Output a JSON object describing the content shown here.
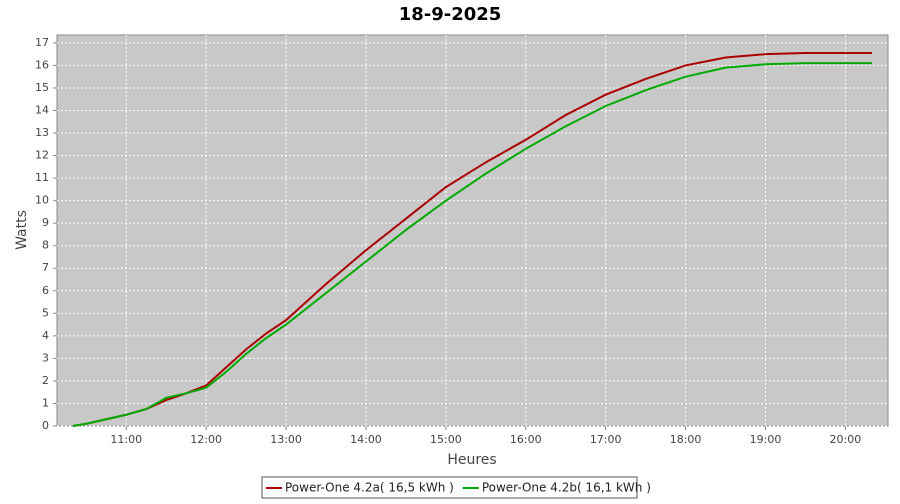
{
  "chart_data": {
    "type": "line",
    "title": "18-9-2025",
    "x_label": "Heures",
    "y_label": "Watts",
    "x": [
      "10:20",
      "10:30",
      "10:45",
      "11:00",
      "11:15",
      "11:30",
      "11:45",
      "12:00",
      "12:15",
      "12:30",
      "12:45",
      "13:00",
      "13:30",
      "14:00",
      "14:30",
      "15:00",
      "15:30",
      "16:00",
      "16:30",
      "17:00",
      "17:30",
      "18:00",
      "18:30",
      "19:00",
      "19:30",
      "20:00",
      "20:20"
    ],
    "series": [
      {
        "name": "Power-One 4.2a( 16,5 kWh )",
        "color": "#aa0000",
        "values": [
          0,
          0.1,
          0.3,
          0.5,
          0.75,
          1.15,
          1.45,
          1.8,
          2.6,
          3.4,
          4.1,
          4.7,
          6.3,
          7.8,
          9.2,
          10.6,
          11.7,
          12.7,
          13.8,
          14.7,
          15.4,
          16.0,
          16.35,
          16.5,
          16.55,
          16.55,
          16.55
        ]
      },
      {
        "name": "Power-One 4.2b( 16,1 kWh )",
        "color": "#00aa00",
        "values": [
          0,
          0.1,
          0.3,
          0.5,
          0.75,
          1.25,
          1.45,
          1.7,
          2.4,
          3.2,
          3.9,
          4.5,
          5.9,
          7.3,
          8.7,
          10.0,
          11.2,
          12.3,
          13.3,
          14.2,
          14.9,
          15.5,
          15.9,
          16.05,
          16.1,
          16.1,
          16.1
        ]
      }
    ],
    "xlim": [
      "10:08",
      "20:32"
    ],
    "xticks": [
      "11:00",
      "12:00",
      "13:00",
      "14:00",
      "15:00",
      "16:00",
      "17:00",
      "18:00",
      "19:00",
      "20:00"
    ],
    "ylim": [
      0,
      17.35
    ],
    "yticks": [
      0,
      1,
      2,
      3,
      4,
      5,
      6,
      7,
      8,
      9,
      10,
      11,
      12,
      13,
      14,
      15,
      16,
      17
    ],
    "grid": true,
    "legend": "bottom"
  }
}
